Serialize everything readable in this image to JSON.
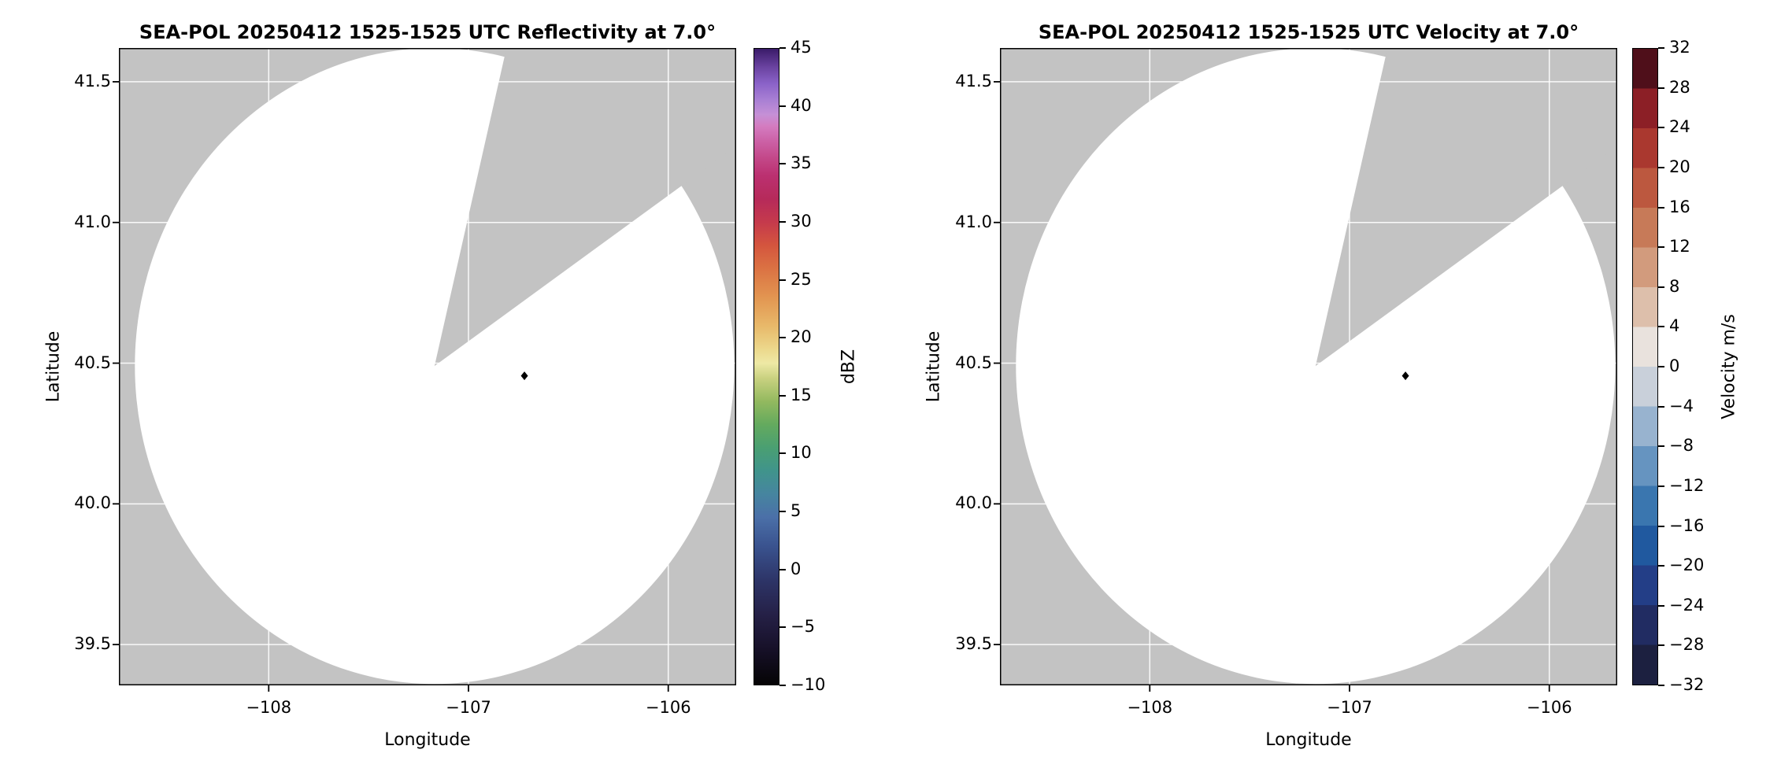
{
  "figure": {
    "background": "#ffffff",
    "instrument": "SEA-POL",
    "panel_count": 2
  },
  "chart_data": [
    {
      "type": "heatmap",
      "subtype": "radar_ppi",
      "title": "SEA-POL 20250412 1525-1525 UTC Reflectivity at 7.0°",
      "xlabel": "Longitude",
      "ylabel": "Latitude",
      "xlim": [
        -108.75,
        -105.66
      ],
      "ylim": [
        39.355,
        41.62
      ],
      "x_ticks": {
        "values": [
          -108,
          -107,
          -106
        ],
        "labels": [
          "−108",
          "−107",
          "−106"
        ]
      },
      "y_ticks": {
        "values": [
          39.5,
          40.0,
          40.5,
          41.0,
          41.5
        ],
        "labels": [
          "39.5",
          "40.0",
          "40.5",
          "41.0",
          "41.5"
        ]
      },
      "grid": true,
      "field": "Reflectivity",
      "echoes": "none visible (scan area blank)",
      "radar": {
        "center_lon": -107.17,
        "center_lat": 40.49,
        "range_deg_lon": 1.5,
        "range_deg_lat": 1.13,
        "missing_sector_azimuth": [
          13.5,
          55.5
        ]
      },
      "marker": {
        "lon": -106.72,
        "lat": 40.455,
        "shape": "diamond",
        "color": "#000000"
      },
      "colors": {
        "no_data": "#c3c3c3",
        "scan_background": "#ffffff",
        "grid": "#ffffff"
      },
      "colorbar": {
        "label": "dBZ",
        "range": [
          -10,
          45
        ],
        "style": "continuous",
        "tick_values": [
          45,
          40,
          35,
          30,
          25,
          20,
          15,
          10,
          5,
          0,
          -5,
          -10
        ],
        "tick_labels": [
          "45",
          "40",
          "35",
          "30",
          "25",
          "20",
          "15",
          "10",
          "5",
          "0",
          "−5",
          "−10"
        ],
        "stops": [
          [
            -10,
            "#050405"
          ],
          [
            -7,
            "#161027"
          ],
          [
            -4,
            "#252046"
          ],
          [
            -1,
            "#2d3467"
          ],
          [
            2,
            "#3a538f"
          ],
          [
            4.5,
            "#4b70a8"
          ],
          [
            6.5,
            "#46859f"
          ],
          [
            8.5,
            "#40948b"
          ],
          [
            10.5,
            "#4a9f72"
          ],
          [
            12.5,
            "#64aa5e"
          ],
          [
            14.5,
            "#93b95f"
          ],
          [
            16.5,
            "#c9d180"
          ],
          [
            17.8,
            "#eee9a5"
          ],
          [
            19,
            "#ecd88c"
          ],
          [
            21,
            "#e8b96a"
          ],
          [
            23.5,
            "#e29551"
          ],
          [
            26,
            "#db7243"
          ],
          [
            28,
            "#d4553e"
          ],
          [
            30,
            "#c53a4c"
          ],
          [
            32,
            "#b62a5a"
          ],
          [
            34,
            "#bb3070"
          ],
          [
            35.5,
            "#c34788"
          ],
          [
            37,
            "#cc61a6"
          ],
          [
            38.3,
            "#d47cc0"
          ],
          [
            39.3,
            "#c590d6"
          ],
          [
            40.6,
            "#a87fd4"
          ],
          [
            42,
            "#8a62c8"
          ],
          [
            43.5,
            "#68419e"
          ],
          [
            45,
            "#3a1b69"
          ]
        ]
      }
    },
    {
      "type": "heatmap",
      "subtype": "radar_ppi",
      "title": "SEA-POL 20250412 1525-1525 UTC Velocity at 7.0°",
      "xlabel": "Longitude",
      "ylabel": "Latitude",
      "xlim": [
        -108.75,
        -105.66
      ],
      "ylim": [
        39.355,
        41.62
      ],
      "x_ticks": {
        "values": [
          -108,
          -107,
          -106
        ],
        "labels": [
          "−108",
          "−107",
          "−106"
        ]
      },
      "y_ticks": {
        "values": [
          39.5,
          40.0,
          40.5,
          41.0,
          41.5
        ],
        "labels": [
          "39.5",
          "40.0",
          "40.5",
          "41.0",
          "41.5"
        ]
      },
      "grid": true,
      "field": "Velocity",
      "echoes": "none visible (scan area blank)",
      "radar": {
        "center_lon": -107.17,
        "center_lat": 40.49,
        "range_deg_lon": 1.5,
        "range_deg_lat": 1.13,
        "missing_sector_azimuth": [
          13.5,
          55.5
        ]
      },
      "marker": {
        "lon": -106.72,
        "lat": 40.455,
        "shape": "diamond",
        "color": "#000000"
      },
      "colors": {
        "no_data": "#c3c3c3",
        "scan_background": "#ffffff",
        "grid": "#ffffff"
      },
      "colorbar": {
        "label": "Velocity m/s",
        "range": [
          -32,
          32
        ],
        "style": "discrete",
        "tick_values": [
          32,
          28,
          24,
          20,
          16,
          12,
          8,
          4,
          0,
          -4,
          -8,
          -12,
          -16,
          -20,
          -24,
          -28,
          -32
        ],
        "tick_labels": [
          "32",
          "28",
          "24",
          "20",
          "16",
          "12",
          "8",
          "4",
          "0",
          "−4",
          "−8",
          "−12",
          "−16",
          "−20",
          "−24",
          "−28",
          "−32"
        ],
        "segments": [
          {
            "range": [
              -32,
              -28
            ],
            "color": "#1c2040"
          },
          {
            "range": [
              -28,
              -24
            ],
            "color": "#212c62"
          },
          {
            "range": [
              -24,
              -20
            ],
            "color": "#233e87"
          },
          {
            "range": [
              -20,
              -16
            ],
            "color": "#20599f"
          },
          {
            "range": [
              -16,
              -12
            ],
            "color": "#3a76af"
          },
          {
            "range": [
              -12,
              -8
            ],
            "color": "#6694c0"
          },
          {
            "range": [
              -8,
              -4
            ],
            "color": "#98b3cf"
          },
          {
            "range": [
              -4,
              0
            ],
            "color": "#c9d0da"
          },
          {
            "range": [
              0,
              4
            ],
            "color": "#e9e2dd"
          },
          {
            "range": [
              4,
              8
            ],
            "color": "#ddbfab"
          },
          {
            "range": [
              8,
              12
            ],
            "color": "#d29b7d"
          },
          {
            "range": [
              12,
              16
            ],
            "color": "#c77a58"
          },
          {
            "range": [
              16,
              20
            ],
            "color": "#bc583f"
          },
          {
            "range": [
              20,
              24
            ],
            "color": "#aa382f"
          },
          {
            "range": [
              24,
              28
            ],
            "color": "#8c1f26"
          },
          {
            "range": [
              28,
              32
            ],
            "color": "#4f0f1a"
          }
        ]
      }
    }
  ]
}
